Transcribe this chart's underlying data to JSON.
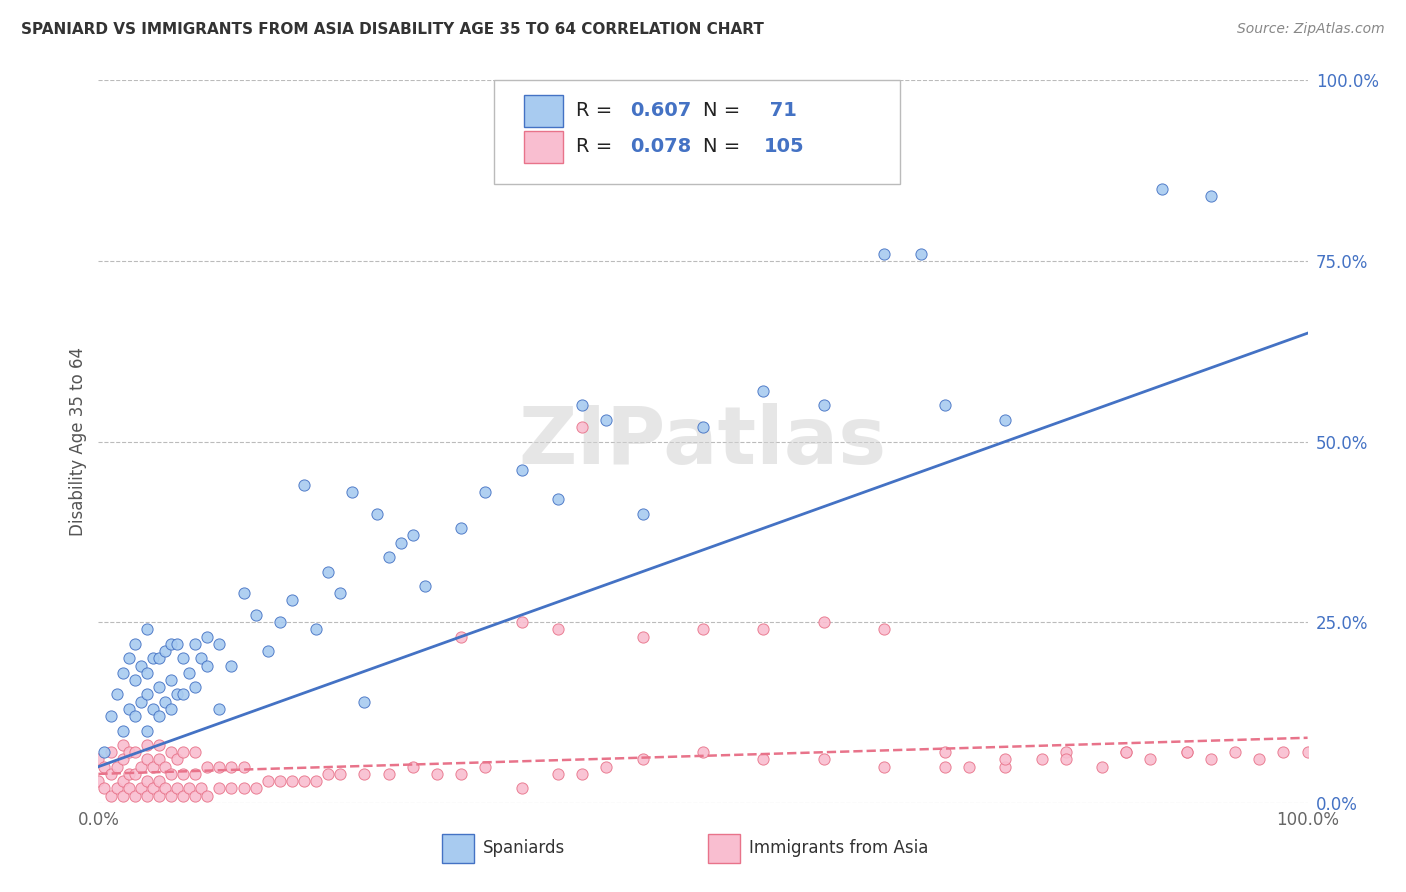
{
  "title": "SPANIARD VS IMMIGRANTS FROM ASIA DISABILITY AGE 35 TO 64 CORRELATION CHART",
  "source": "Source: ZipAtlas.com",
  "ylabel": "Disability Age 35 to 64",
  "xlim": [
    0,
    1
  ],
  "ylim": [
    0,
    1
  ],
  "spaniards_color": "#A8CBF0",
  "immigrants_color": "#F9BED0",
  "spaniards_line_color": "#4472C4",
  "immigrants_line_color": "#E8738A",
  "R_spaniards": 0.607,
  "N_spaniards": 71,
  "R_immigrants": 0.078,
  "N_immigrants": 105,
  "legend_label_spaniards": "Spaniards",
  "legend_label_immigrants": "Immigrants from Asia",
  "watermark": "ZIPatlas",
  "background_color": "#FFFFFF",
  "grid_color": "#BBBBBB",
  "ytick_vals": [
    0.0,
    0.25,
    0.5,
    0.75,
    1.0
  ],
  "ytick_labels": [
    "0.0%",
    "25.0%",
    "50.0%",
    "75.0%",
    "100.0%"
  ],
  "xtick_vals": [
    0.0,
    1.0
  ],
  "xtick_labels": [
    "0.0%",
    "100.0%"
  ],
  "sp_line_start_y": 0.05,
  "sp_line_end_y": 0.65,
  "im_line_start_y": 0.04,
  "im_line_end_y": 0.09,
  "spaniards_x": [
    0.005,
    0.01,
    0.015,
    0.02,
    0.02,
    0.025,
    0.025,
    0.03,
    0.03,
    0.03,
    0.035,
    0.035,
    0.04,
    0.04,
    0.04,
    0.04,
    0.045,
    0.045,
    0.05,
    0.05,
    0.05,
    0.055,
    0.055,
    0.06,
    0.06,
    0.06,
    0.065,
    0.065,
    0.07,
    0.07,
    0.075,
    0.08,
    0.08,
    0.085,
    0.09,
    0.09,
    0.1,
    0.1,
    0.11,
    0.12,
    0.13,
    0.14,
    0.15,
    0.16,
    0.17,
    0.18,
    0.19,
    0.2,
    0.21,
    0.22,
    0.23,
    0.24,
    0.25,
    0.26,
    0.27,
    0.3,
    0.32,
    0.35,
    0.38,
    0.4,
    0.42,
    0.45,
    0.5,
    0.55,
    0.6,
    0.65,
    0.68,
    0.7,
    0.75,
    0.88,
    0.92
  ],
  "spaniards_y": [
    0.07,
    0.12,
    0.15,
    0.1,
    0.18,
    0.13,
    0.2,
    0.12,
    0.17,
    0.22,
    0.14,
    0.19,
    0.1,
    0.15,
    0.18,
    0.24,
    0.13,
    0.2,
    0.12,
    0.16,
    0.2,
    0.14,
    0.21,
    0.13,
    0.17,
    0.22,
    0.15,
    0.22,
    0.15,
    0.2,
    0.18,
    0.16,
    0.22,
    0.2,
    0.19,
    0.23,
    0.13,
    0.22,
    0.19,
    0.29,
    0.26,
    0.21,
    0.25,
    0.28,
    0.44,
    0.24,
    0.32,
    0.29,
    0.43,
    0.14,
    0.4,
    0.34,
    0.36,
    0.37,
    0.3,
    0.38,
    0.43,
    0.46,
    0.42,
    0.55,
    0.53,
    0.4,
    0.52,
    0.57,
    0.55,
    0.76,
    0.76,
    0.55,
    0.53,
    0.85,
    0.84
  ],
  "immigrants_x": [
    0.0,
    0.0,
    0.005,
    0.005,
    0.01,
    0.01,
    0.01,
    0.015,
    0.015,
    0.02,
    0.02,
    0.02,
    0.02,
    0.025,
    0.025,
    0.025,
    0.03,
    0.03,
    0.03,
    0.035,
    0.035,
    0.04,
    0.04,
    0.04,
    0.04,
    0.045,
    0.045,
    0.05,
    0.05,
    0.05,
    0.05,
    0.055,
    0.055,
    0.06,
    0.06,
    0.06,
    0.065,
    0.065,
    0.07,
    0.07,
    0.07,
    0.075,
    0.08,
    0.08,
    0.08,
    0.085,
    0.09,
    0.09,
    0.1,
    0.1,
    0.11,
    0.11,
    0.12,
    0.12,
    0.13,
    0.14,
    0.15,
    0.16,
    0.17,
    0.18,
    0.19,
    0.2,
    0.22,
    0.24,
    0.26,
    0.28,
    0.3,
    0.32,
    0.35,
    0.38,
    0.4,
    0.42,
    0.45,
    0.5,
    0.55,
    0.6,
    0.65,
    0.7,
    0.72,
    0.75,
    0.78,
    0.8,
    0.83,
    0.85,
    0.87,
    0.9,
    0.92,
    0.94,
    0.96,
    0.98,
    1.0,
    0.5,
    0.55,
    0.3,
    0.35,
    0.38,
    0.4,
    0.45,
    0.6,
    0.65,
    0.7,
    0.75,
    0.8,
    0.85,
    0.9
  ],
  "immigrants_y": [
    0.03,
    0.06,
    0.02,
    0.05,
    0.01,
    0.04,
    0.07,
    0.02,
    0.05,
    0.01,
    0.03,
    0.06,
    0.08,
    0.02,
    0.04,
    0.07,
    0.01,
    0.04,
    0.07,
    0.02,
    0.05,
    0.01,
    0.03,
    0.06,
    0.08,
    0.02,
    0.05,
    0.01,
    0.03,
    0.06,
    0.08,
    0.02,
    0.05,
    0.01,
    0.04,
    0.07,
    0.02,
    0.06,
    0.01,
    0.04,
    0.07,
    0.02,
    0.01,
    0.04,
    0.07,
    0.02,
    0.01,
    0.05,
    0.02,
    0.05,
    0.02,
    0.05,
    0.02,
    0.05,
    0.02,
    0.03,
    0.03,
    0.03,
    0.03,
    0.03,
    0.04,
    0.04,
    0.04,
    0.04,
    0.05,
    0.04,
    0.04,
    0.05,
    0.02,
    0.04,
    0.04,
    0.05,
    0.06,
    0.07,
    0.06,
    0.06,
    0.05,
    0.07,
    0.05,
    0.05,
    0.06,
    0.07,
    0.05,
    0.07,
    0.06,
    0.07,
    0.06,
    0.07,
    0.06,
    0.07,
    0.07,
    0.24,
    0.24,
    0.23,
    0.25,
    0.24,
    0.52,
    0.23,
    0.25,
    0.24,
    0.05,
    0.06,
    0.06,
    0.07,
    0.07
  ]
}
